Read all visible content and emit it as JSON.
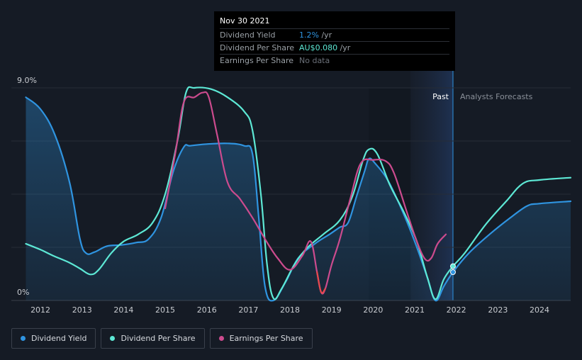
{
  "chart_data": {
    "type": "line",
    "title": "",
    "xlabel": "",
    "ylabel": "",
    "y_axis": {
      "top_label": "9.0%",
      "bottom_label": "0%",
      "ylim": [
        0,
        9.0
      ],
      "unit": "%"
    },
    "x_ticks": [
      "2012",
      "2013",
      "2014",
      "2015",
      "2016",
      "2017",
      "2018",
      "2019",
      "2020",
      "2021",
      "2022",
      "2023",
      "2024"
    ],
    "x_tick_values": [
      2012,
      2013,
      2014,
      2015,
      2016,
      2017,
      2018,
      2019,
      2020,
      2021,
      2022,
      2023,
      2024
    ],
    "xlim": [
      2011.3,
      2024.75
    ],
    "past_label": "Past",
    "forecast_label": "Analysts Forecasts",
    "forecast_region_start": 2020.9,
    "forecast_start": 2021.92,
    "series": [
      {
        "name": "Dividend Yield",
        "color": "#2f94e0",
        "filled": true,
        "points": [
          [
            2011.65,
            8.6
          ],
          [
            2012.0,
            8.1
          ],
          [
            2012.35,
            7.0
          ],
          [
            2012.7,
            5.0
          ],
          [
            2012.95,
            2.6
          ],
          [
            2013.1,
            2.0
          ],
          [
            2013.3,
            2.05
          ],
          [
            2013.6,
            2.3
          ],
          [
            2013.95,
            2.35
          ],
          [
            2014.3,
            2.45
          ],
          [
            2014.6,
            2.6
          ],
          [
            2014.9,
            3.5
          ],
          [
            2015.2,
            5.5
          ],
          [
            2015.45,
            6.5
          ],
          [
            2015.6,
            6.55
          ],
          [
            2016.0,
            6.62
          ],
          [
            2016.5,
            6.65
          ],
          [
            2016.9,
            6.55
          ],
          [
            2017.1,
            6.2
          ],
          [
            2017.25,
            3.5
          ],
          [
            2017.4,
            0.6
          ],
          [
            2017.6,
            0.0
          ],
          [
            2017.9,
            0.8
          ],
          [
            2018.2,
            1.8
          ],
          [
            2018.6,
            2.4
          ],
          [
            2018.95,
            2.8
          ],
          [
            2019.2,
            3.1
          ],
          [
            2019.4,
            3.3
          ],
          [
            2019.6,
            4.4
          ],
          [
            2019.8,
            5.5
          ],
          [
            2019.9,
            6.0
          ],
          [
            2020.05,
            5.8
          ],
          [
            2020.35,
            5.1
          ],
          [
            2020.7,
            3.8
          ],
          [
            2021.0,
            2.5
          ],
          [
            2021.3,
            1.0
          ],
          [
            2021.5,
            0.0
          ],
          [
            2021.7,
            0.6
          ],
          [
            2021.92,
            1.2
          ],
          [
            2022.3,
            2.0
          ],
          [
            2022.8,
            2.8
          ],
          [
            2023.3,
            3.5
          ],
          [
            2023.7,
            4.0
          ],
          [
            2024.0,
            4.1
          ],
          [
            2024.75,
            4.2
          ]
        ]
      },
      {
        "name": "Dividend Per Share",
        "color": "#5de8d5",
        "filled": false,
        "points": [
          [
            2011.65,
            2.4
          ],
          [
            2012.0,
            2.15
          ],
          [
            2012.3,
            1.9
          ],
          [
            2012.7,
            1.6
          ],
          [
            2012.95,
            1.35
          ],
          [
            2013.2,
            1.1
          ],
          [
            2013.4,
            1.3
          ],
          [
            2013.7,
            2.0
          ],
          [
            2014.0,
            2.5
          ],
          [
            2014.35,
            2.8
          ],
          [
            2014.7,
            3.3
          ],
          [
            2015.0,
            4.5
          ],
          [
            2015.3,
            6.8
          ],
          [
            2015.5,
            8.8
          ],
          [
            2015.7,
            9.0
          ],
          [
            2016.1,
            8.95
          ],
          [
            2016.5,
            8.6
          ],
          [
            2016.9,
            8.0
          ],
          [
            2017.1,
            7.2
          ],
          [
            2017.3,
            4.5
          ],
          [
            2017.45,
            1.5
          ],
          [
            2017.6,
            0.1
          ],
          [
            2017.8,
            0.5
          ],
          [
            2018.1,
            1.5
          ],
          [
            2018.4,
            2.2
          ],
          [
            2018.8,
            2.8
          ],
          [
            2019.2,
            3.4
          ],
          [
            2019.5,
            4.4
          ],
          [
            2019.75,
            5.9
          ],
          [
            2019.9,
            6.4
          ],
          [
            2020.1,
            6.2
          ],
          [
            2020.4,
            4.9
          ],
          [
            2020.75,
            3.7
          ],
          [
            2021.05,
            2.5
          ],
          [
            2021.3,
            1.0
          ],
          [
            2021.5,
            0.05
          ],
          [
            2021.7,
            0.9
          ],
          [
            2021.92,
            1.45
          ],
          [
            2022.2,
            2.0
          ],
          [
            2022.7,
            3.2
          ],
          [
            2023.2,
            4.2
          ],
          [
            2023.6,
            4.95
          ],
          [
            2024.0,
            5.1
          ],
          [
            2024.75,
            5.2
          ]
        ]
      },
      {
        "name": "Earnings Per Share",
        "color": "#cc4b8e",
        "filled": false,
        "points": [
          [
            2015.0,
            3.9
          ],
          [
            2015.25,
            6.3
          ],
          [
            2015.45,
            8.4
          ],
          [
            2015.7,
            8.6
          ],
          [
            2015.9,
            8.8
          ],
          [
            2016.05,
            8.6
          ],
          [
            2016.25,
            7.0
          ],
          [
            2016.5,
            5.0
          ],
          [
            2016.8,
            4.3
          ],
          [
            2017.1,
            3.5
          ],
          [
            2017.4,
            2.6
          ],
          [
            2017.7,
            1.8
          ],
          [
            2018.0,
            1.3
          ],
          [
            2018.3,
            1.9
          ],
          [
            2018.5,
            2.5
          ],
          [
            2018.65,
            1.2
          ],
          [
            2018.75,
            0.35
          ],
          [
            2018.85,
            0.5
          ],
          [
            2019.0,
            1.5
          ],
          [
            2019.2,
            2.6
          ],
          [
            2019.45,
            4.3
          ],
          [
            2019.7,
            5.8
          ],
          [
            2020.0,
            5.95
          ],
          [
            2020.3,
            5.9
          ],
          [
            2020.5,
            5.4
          ],
          [
            2020.8,
            3.8
          ],
          [
            2021.05,
            2.5
          ],
          [
            2021.25,
            1.75
          ],
          [
            2021.4,
            1.8
          ],
          [
            2021.55,
            2.4
          ],
          [
            2021.75,
            2.8
          ]
        ]
      }
    ],
    "highlight_points": [
      {
        "series": "Dividend Yield",
        "x": 2021.92,
        "y": 1.2
      },
      {
        "series": "Dividend Per Share",
        "x": 2021.92,
        "y": 1.45
      }
    ]
  },
  "tooltip": {
    "date": "Nov 30 2021",
    "rows": [
      {
        "label": "Dividend Yield",
        "value": "1.2%",
        "unit": " /yr",
        "value_color": "#2f94e0"
      },
      {
        "label": "Dividend Per Share",
        "value": "AU$0.080",
        "unit": " /yr",
        "value_color": "#5de8d5"
      },
      {
        "label": "Earnings Per Share",
        "value": "No data",
        "unit": "",
        "value_color": "#6b7079"
      }
    ]
  },
  "legend": [
    {
      "label": "Dividend Yield",
      "color": "#2f94e0"
    },
    {
      "label": "Dividend Per Share",
      "color": "#5de8d5"
    },
    {
      "label": "Earnings Per Share",
      "color": "#cc4b8e"
    }
  ],
  "colors": {
    "background": "#151b25",
    "grid": "#262c36",
    "axis_text": "#c9ccd1",
    "past_region": "#1b2334",
    "forecast_divider": "#2f94e0"
  }
}
